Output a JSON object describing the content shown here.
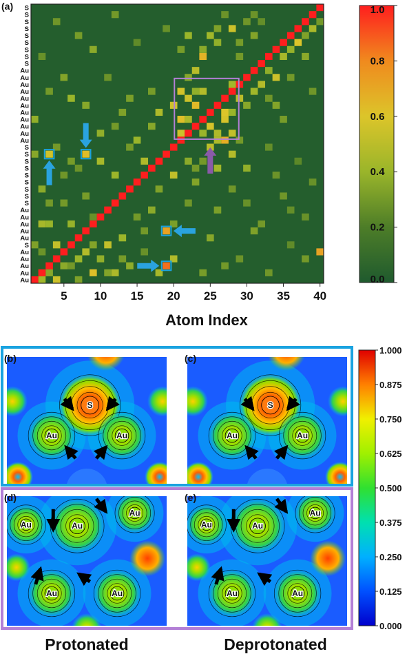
{
  "chart_data": [
    {
      "type": "heatmap",
      "panel_label": "(a)",
      "xlabel": "Atom Index",
      "x_tick_labels": [
        "5",
        "10",
        "15",
        "20",
        "25",
        "30",
        "35",
        "40"
      ],
      "x_ticks": [
        5,
        10,
        15,
        20,
        25,
        30,
        35,
        40
      ],
      "y_row_labels": [
        "S",
        "S",
        "S",
        "S",
        "S",
        "S",
        "S",
        "S",
        "S",
        "Au",
        "Au",
        "Au",
        "Au",
        "Au",
        "Au",
        "Au",
        "Au",
        "Au",
        "Au",
        "Au",
        "S",
        "S",
        "S",
        "S",
        "S",
        "S",
        "S",
        "S",
        "S",
        "Au",
        "Au",
        "Au",
        "Au",
        "Au",
        "S",
        "Au",
        "Au",
        "Au",
        "Au",
        "Au"
      ],
      "matrix_size": 40,
      "diagonal_value": 1.0,
      "colorbar": {
        "range": [
          0,
          1
        ],
        "tick_labels": [
          "1.0",
          "0.8",
          "0.6",
          "0.4",
          "0.2",
          "0.0"
        ],
        "ticks": [
          1.0,
          0.8,
          0.6,
          0.4,
          0.2,
          0.0
        ],
        "colors": [
          "#1f5a2e",
          "#5a8a2a",
          "#a8b82a",
          "#d8c428",
          "#f08a20",
          "#ff2020"
        ]
      },
      "highlighted_cells": [
        [
          3,
          19
        ],
        [
          8,
          19
        ],
        [
          19,
          8
        ],
        [
          19,
          3
        ]
      ],
      "highlighted_block": {
        "x_range": [
          21,
          29
        ],
        "y_range": [
          21,
          29
        ]
      },
      "entries": [
        [
          2,
          1,
          0.42
        ],
        [
          3,
          2,
          0.35
        ],
        [
          4,
          1,
          0.55
        ],
        [
          6,
          3,
          0.3
        ],
        [
          8,
          5,
          0.48
        ],
        [
          9,
          2,
          0.62
        ],
        [
          3,
          9,
          0.4
        ],
        [
          2,
          5,
          0.28
        ],
        [
          7,
          1,
          0.33
        ],
        [
          10,
          4,
          0.38
        ],
        [
          11,
          6,
          0.52
        ],
        [
          12,
          2,
          0.45
        ],
        [
          5,
          12,
          0.3
        ],
        [
          14,
          3,
          0.37
        ],
        [
          13,
          7,
          0.41
        ],
        [
          15,
          10,
          0.3
        ],
        [
          16,
          5,
          0.27
        ],
        [
          17,
          11,
          0.36
        ],
        [
          18,
          2,
          0.44
        ],
        [
          6,
          18,
          0.31
        ],
        [
          20,
          4,
          0.47
        ],
        [
          20,
          9,
          0.32
        ],
        [
          22,
          12,
          0.29
        ],
        [
          23,
          15,
          0.34
        ],
        [
          24,
          18,
          0.3
        ],
        [
          25,
          20,
          0.5
        ],
        [
          26,
          22,
          0.46
        ],
        [
          27,
          24,
          0.58
        ],
        [
          28,
          25,
          0.4
        ],
        [
          29,
          21,
          0.3
        ],
        [
          30,
          26,
          0.35
        ],
        [
          31,
          28,
          0.42
        ],
        [
          32,
          29,
          0.48
        ],
        [
          33,
          31,
          0.37
        ],
        [
          34,
          30,
          0.55
        ],
        [
          35,
          33,
          0.44
        ],
        [
          36,
          34,
          0.39
        ],
        [
          37,
          35,
          0.6
        ],
        [
          38,
          36,
          0.33
        ],
        [
          39,
          37,
          0.45
        ],
        [
          40,
          38,
          0.3
        ],
        [
          40,
          5,
          0.72
        ],
        [
          22,
          30,
          0.35
        ],
        [
          23,
          31,
          0.49
        ],
        [
          24,
          33,
          0.66
        ],
        [
          26,
          35,
          0.38
        ],
        [
          28,
          37,
          0.55
        ],
        [
          30,
          38,
          0.29
        ],
        [
          21,
          34,
          0.31
        ],
        [
          25,
          36,
          0.42
        ],
        [
          27,
          39,
          0.28
        ],
        [
          29,
          33,
          0.3
        ],
        [
          31,
          36,
          0.34
        ],
        [
          32,
          38,
          0.26
        ],
        [
          21,
          24,
          0.62
        ],
        [
          22,
          27,
          0.55
        ],
        [
          23,
          26,
          0.64
        ],
        [
          24,
          28,
          0.48
        ],
        [
          25,
          23,
          0.58
        ],
        [
          26,
          21,
          0.46
        ],
        [
          27,
          25,
          0.6
        ],
        [
          28,
          22,
          0.52
        ],
        [
          21,
          28,
          0.57
        ],
        [
          22,
          24,
          0.45
        ],
        [
          29,
          27,
          0.5
        ],
        [
          24,
          22,
          0.4
        ],
        [
          27,
          21,
          0.68
        ],
        [
          21,
          22,
          0.55
        ],
        [
          28,
          29,
          0.42
        ],
        [
          23,
          28,
          0.38
        ],
        [
          19,
          3,
          0.85
        ],
        [
          19,
          8,
          0.72
        ],
        [
          3,
          19,
          0.56
        ],
        [
          8,
          19,
          0.63
        ],
        [
          10,
          18,
          0.44
        ],
        [
          12,
          16,
          0.41
        ],
        [
          14,
          20,
          0.3
        ],
        [
          16,
          18,
          0.46
        ],
        [
          18,
          14,
          0.33
        ],
        [
          20,
          16,
          0.52
        ],
        [
          1,
          24,
          0.38
        ],
        [
          3,
          28,
          0.3
        ],
        [
          5,
          30,
          0.34
        ],
        [
          2,
          33,
          0.27
        ],
        [
          7,
          36,
          0.31
        ],
        [
          9,
          34,
          0.36
        ],
        [
          4,
          38,
          0.29
        ],
        [
          6,
          27,
          0.4
        ],
        [
          8,
          26,
          0.35
        ],
        [
          11,
          30,
          0.28
        ],
        [
          13,
          25,
          0.33
        ],
        [
          15,
          35,
          0.25
        ],
        [
          17,
          28,
          0.31
        ],
        [
          19,
          37,
          0.27
        ],
        [
          12,
          39,
          0.3
        ],
        [
          10,
          22,
          0.38
        ],
        [
          26,
          11,
          0.32
        ],
        [
          28,
          14,
          0.29
        ],
        [
          30,
          12,
          0.27
        ],
        [
          32,
          9,
          0.3
        ],
        [
          34,
          16,
          0.28
        ],
        [
          36,
          6,
          0.25
        ],
        [
          38,
          10,
          0.27
        ],
        [
          25,
          7,
          0.35
        ],
        [
          27,
          3,
          0.3
        ],
        [
          23,
          17,
          0.3
        ],
        [
          33,
          20,
          0.26
        ],
        [
          35,
          13,
          0.29
        ],
        [
          37,
          18,
          0.24
        ],
        [
          39,
          15,
          0.27
        ],
        [
          24,
          2,
          0.31
        ],
        [
          29,
          4,
          0.28
        ],
        [
          31,
          8,
          0.33
        ],
        [
          33,
          2,
          0.29
        ],
        [
          36,
          11,
          0.26
        ],
        [
          38,
          4,
          0.3
        ],
        [
          22,
          18,
          0.36
        ],
        [
          20,
          26,
          0.56
        ],
        [
          18,
          25,
          0.46
        ],
        [
          17,
          23,
          0.35
        ],
        [
          15,
          21,
          0.4
        ],
        [
          14,
          27,
          0.32
        ],
        [
          12,
          23,
          0.3
        ],
        [
          26,
          17,
          0.42
        ],
        [
          28,
          19,
          0.48
        ],
        [
          30,
          17,
          0.38
        ],
        [
          2,
          9,
          0.44
        ],
        [
          4,
          6,
          0.52
        ],
        [
          5,
          3,
          0.36
        ],
        [
          7,
          4,
          0.4
        ],
        [
          1,
          6,
          0.33
        ],
        [
          6,
          9,
          0.39
        ],
        [
          9,
          6,
          0.34
        ],
        [
          3,
          12,
          0.3
        ],
        [
          2,
          14,
          0.36
        ],
        [
          5,
          16,
          0.29
        ],
        [
          8,
          13,
          0.31
        ],
        [
          1,
          19,
          0.35
        ],
        [
          4,
          20,
          0.3
        ],
        [
          7,
          17,
          0.28
        ],
        [
          11,
          2,
          0.34
        ],
        [
          13,
          4,
          0.31
        ],
        [
          16,
          8,
          0.3
        ],
        [
          9,
          10,
          0.27
        ],
        [
          22,
          36,
          0.4
        ],
        [
          24,
          34,
          0.36
        ],
        [
          26,
          37,
          0.33
        ],
        [
          29,
          35,
          0.31
        ],
        [
          31,
          39,
          0.28
        ],
        [
          34,
          26,
          0.34
        ],
        [
          36,
          30,
          0.3
        ],
        [
          38,
          33,
          0.36
        ],
        [
          39,
          28,
          0.29
        ],
        [
          35,
          24,
          0.31
        ],
        [
          33,
          27,
          0.29
        ]
      ]
    },
    {
      "type": "heatmap",
      "description_text": "Colorbar for panels (b)-(e)",
      "colorbar": {
        "range": [
          0.0,
          1.0
        ],
        "tick_labels": [
          "1.000",
          "0.875",
          "0.750",
          "0.625",
          "0.500",
          "0.375",
          "0.250",
          "0.125",
          "0.000"
        ],
        "ticks": [
          1.0,
          0.875,
          0.75,
          0.625,
          0.5,
          0.375,
          0.25,
          0.125,
          0.0
        ]
      },
      "panels": [
        {
          "label": "(b)",
          "group": "top",
          "atoms": [
            {
              "symbol": "S"
            },
            {
              "symbol": "Au"
            },
            {
              "symbol": "Au"
            }
          ]
        },
        {
          "label": "(c)",
          "group": "top",
          "atoms": [
            {
              "symbol": "S"
            },
            {
              "symbol": "Au"
            },
            {
              "symbol": "Au"
            }
          ]
        },
        {
          "label": "(d)",
          "group": "bottom",
          "atoms": [
            {
              "symbol": "Au"
            },
            {
              "symbol": "Au"
            },
            {
              "symbol": "Au"
            },
            {
              "symbol": "Au"
            },
            {
              "symbol": "Au"
            }
          ]
        },
        {
          "label": "(e)",
          "group": "bottom",
          "atoms": [
            {
              "symbol": "Au"
            },
            {
              "symbol": "Au"
            },
            {
              "symbol": "Au"
            },
            {
              "symbol": "Au"
            },
            {
              "symbol": "Au"
            }
          ]
        }
      ],
      "column_captions": [
        "Protonated",
        "Deprotonated"
      ]
    }
  ],
  "colors": {
    "cyan_highlight": "#1aa3e0",
    "purple_highlight": "#b37fd6",
    "arrow_cyan": "#2aa3df",
    "arrow_purple": "#8a5aa8"
  }
}
